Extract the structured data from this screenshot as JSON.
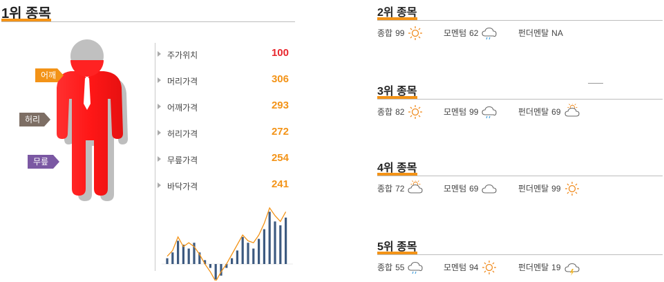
{
  "rank1": {
    "title": "1위 종목",
    "tags": {
      "shoulder": "어깨",
      "waist": "허리",
      "knee": "무릎"
    },
    "prices": [
      {
        "label": "주가위치",
        "value": "100"
      },
      {
        "label": "머리가격",
        "value": "306"
      },
      {
        "label": "어깨가격",
        "value": "293"
      },
      {
        "label": "허리가격",
        "value": "272"
      },
      {
        "label": "무릎가격",
        "value": "254"
      },
      {
        "label": "바닥가격",
        "value": "241"
      }
    ],
    "colors": {
      "accent": "#f39317",
      "figure": "#ff2b2b",
      "highlight": "#e8262d",
      "shoulder_tag": "#f39317",
      "waist_tag": "#7d6e64",
      "knee_tag": "#7b58a3",
      "bars": "#3d5a80",
      "line": "#f39317"
    }
  },
  "chart_data": {
    "type": "bar",
    "series": [
      {
        "type": "bar",
        "values": [
          3,
          6,
          12,
          10,
          8,
          11,
          6,
          2,
          -2,
          -8,
          -6,
          -2,
          3,
          7,
          14,
          11,
          8,
          13,
          18,
          27,
          22,
          20,
          24
        ]
      },
      {
        "type": "line",
        "values": [
          4,
          7,
          14,
          9,
          11,
          9,
          5,
          0,
          -4,
          -9,
          -4,
          0,
          5,
          10,
          15,
          12,
          11,
          15,
          21,
          29,
          25,
          22,
          27
        ]
      }
    ]
  },
  "ranks": [
    {
      "title": "2위 종목",
      "items": [
        {
          "label": "종합",
          "value": "99",
          "icon": "sun-icon"
        },
        {
          "label": "모멘텀",
          "value": "62",
          "icon": "rain-cloud-icon"
        },
        {
          "label": "펀더멘탈",
          "value": "NA",
          "icon": ""
        }
      ]
    },
    {
      "title": "3위 종목",
      "items": [
        {
          "label": "종합",
          "value": "82",
          "icon": "sun-icon"
        },
        {
          "label": "모멘텀",
          "value": "99",
          "icon": "rain-cloud-icon"
        },
        {
          "label": "펀더멘탈",
          "value": "69",
          "icon": "partly-cloudy-icon"
        }
      ]
    },
    {
      "title": "4위 종목",
      "items": [
        {
          "label": "종합",
          "value": "72",
          "icon": "partly-cloudy-icon"
        },
        {
          "label": "모멘텀",
          "value": "69",
          "icon": "cloud-icon"
        },
        {
          "label": "펀더멘탈",
          "value": "99",
          "icon": "sun-icon"
        }
      ]
    },
    {
      "title": "5위 종목",
      "items": [
        {
          "label": "종합",
          "value": "55",
          "icon": "rain-cloud-icon"
        },
        {
          "label": "모멘텀",
          "value": "94",
          "icon": "sun-icon"
        },
        {
          "label": "펀더멘탈",
          "value": "19",
          "icon": "thunder-cloud-icon"
        }
      ]
    }
  ]
}
